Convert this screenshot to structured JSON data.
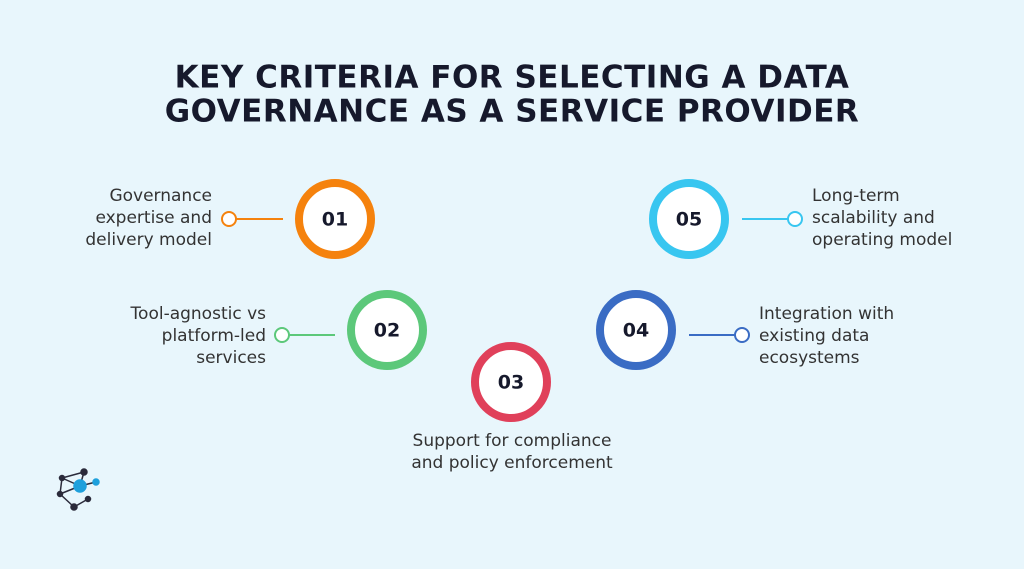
{
  "title": {
    "lines": [
      "KEY CRITERIA FOR SELECTING A DATA",
      "GOVERNANCE AS A SERVICE PROVIDER"
    ]
  },
  "nodes": [
    {
      "number": "01",
      "label": [
        "Governance",
        "expertise and",
        "delivery model"
      ]
    },
    {
      "number": "02",
      "label": [
        "Tool-agnostic vs",
        "platform-led",
        "services"
      ]
    },
    {
      "number": "03",
      "label": [
        "Support for compliance",
        "and policy enforcement"
      ]
    },
    {
      "number": "04",
      "label": [
        "Integration with",
        "existing data",
        "ecosystems"
      ]
    },
    {
      "number": "05",
      "label": [
        "Long-term",
        "scalability and",
        "operating model"
      ]
    }
  ]
}
